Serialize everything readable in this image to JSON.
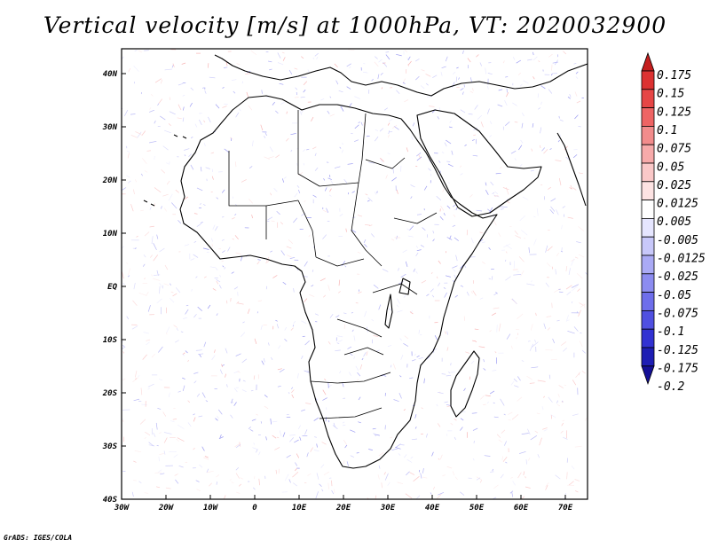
{
  "title": "Vertical velocity [m/s] at 1000hPa, VT: 2020032900",
  "footer": "GrADS: IGES/COLA",
  "map": {
    "lat_ticks": [
      "40N",
      "30N",
      "20N",
      "10N",
      "EQ",
      "10S",
      "20S",
      "30S",
      "40S"
    ],
    "lon_ticks": [
      "30W",
      "20W",
      "10W",
      "0",
      "10E",
      "20E",
      "30E",
      "40E",
      "50E",
      "60E",
      "70E"
    ],
    "land_outline_color": "#000000"
  },
  "colorbar": {
    "labels": [
      "0.175",
      "0.15",
      "0.125",
      "0.1",
      "0.075",
      "0.05",
      "0.025",
      "0.0125",
      "0.005",
      "-0.005",
      "-0.0125",
      "-0.025",
      "-0.05",
      "-0.075",
      "-0.1",
      "-0.125",
      "-0.175",
      "-0.2"
    ],
    "colors": [
      "#c41e1e",
      "#dc3232",
      "#e64646",
      "#ee6464",
      "#f28c8c",
      "#f7aaaa",
      "#fac8c8",
      "#fde3e3",
      "#ffffff",
      "#e6e6ff",
      "#c8c8fa",
      "#aaaaf5",
      "#8c8cf0",
      "#6e6eeb",
      "#5050e1",
      "#3232d2",
      "#1e1eb4",
      "#140f96"
    ]
  }
}
